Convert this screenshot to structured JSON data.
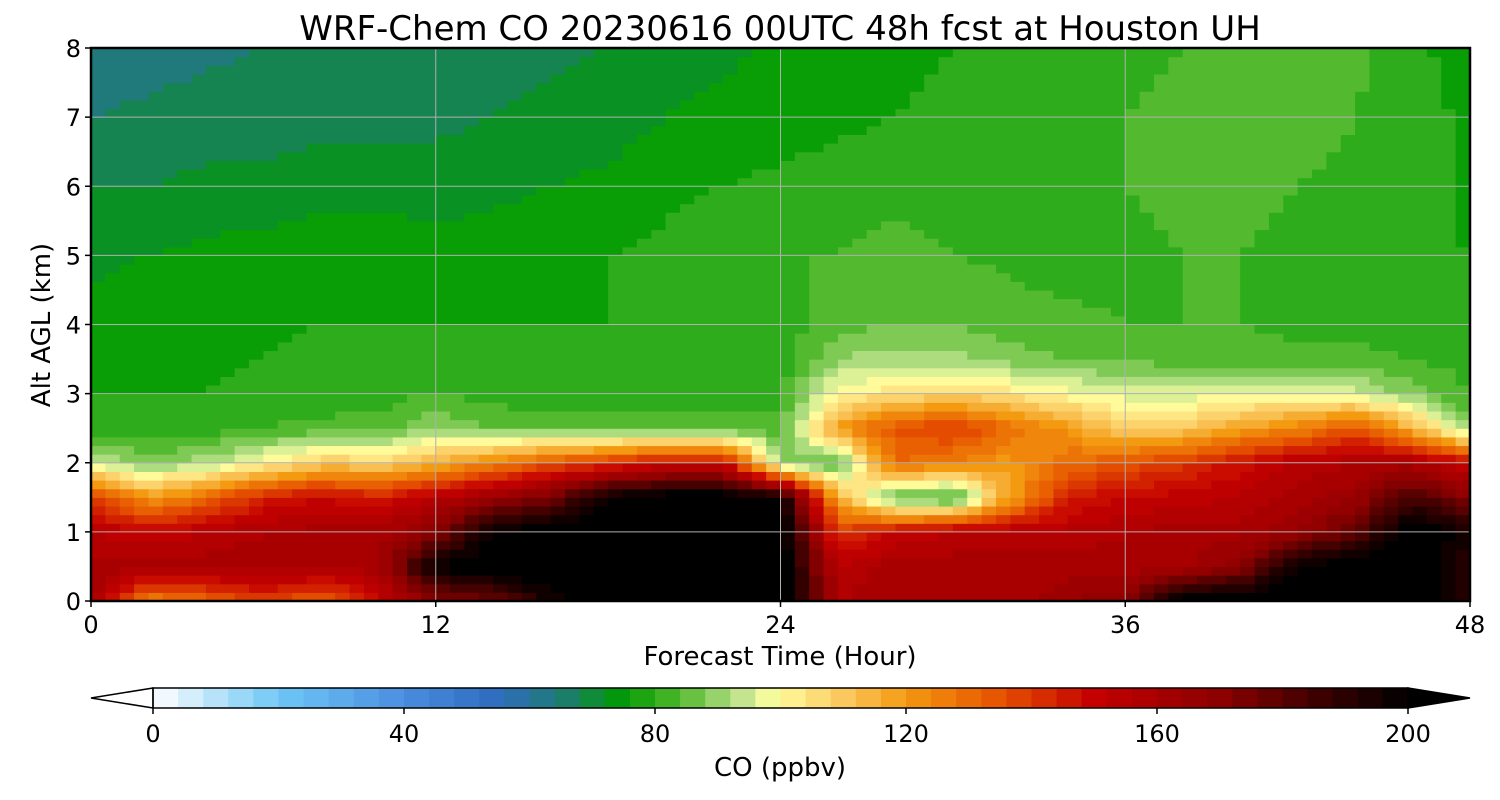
{
  "chart_data": {
    "type": "heatmap",
    "title": "WRF-Chem CO  20230616 00UTC 48h fcst at Houston UH",
    "xlabel": "Forecast Time (Hour)",
    "ylabel": "Alt AGL (km)",
    "xlim": [
      0,
      48
    ],
    "ylim": [
      0,
      8
    ],
    "x_ticks": [
      0,
      12,
      24,
      36,
      48
    ],
    "y_ticks": [
      0,
      1,
      2,
      3,
      4,
      5,
      6,
      7,
      8
    ],
    "grid": true,
    "colorbar": {
      "label": "CO  (ppbv)",
      "vmin": 0,
      "vmax": 200,
      "ticks": [
        0,
        40,
        80,
        120,
        160,
        200
      ],
      "extend": "both",
      "colors": [
        {
          "v": 0,
          "c": "#ffffff"
        },
        {
          "v": 20,
          "c": "#6ec7f5"
        },
        {
          "v": 40,
          "c": "#4a8ee0"
        },
        {
          "v": 55,
          "c": "#2e6cbe"
        },
        {
          "v": 65,
          "c": "#1e7b74"
        },
        {
          "v": 75,
          "c": "#009a00"
        },
        {
          "v": 85,
          "c": "#5cbd35"
        },
        {
          "v": 93,
          "c": "#b8e08a"
        },
        {
          "v": 99,
          "c": "#ffffa0"
        },
        {
          "v": 110,
          "c": "#fbc860"
        },
        {
          "v": 120,
          "c": "#f39a10"
        },
        {
          "v": 135,
          "c": "#e65200"
        },
        {
          "v": 150,
          "c": "#c40000"
        },
        {
          "v": 170,
          "c": "#8c0000"
        },
        {
          "v": 185,
          "c": "#400000"
        },
        {
          "v": 200,
          "c": "#000000"
        }
      ]
    },
    "hours": [
      0,
      2,
      4,
      6,
      8,
      10,
      12,
      14,
      16,
      18,
      20,
      22,
      24,
      26,
      28,
      30,
      32,
      34,
      36,
      38,
      40,
      42,
      44,
      46,
      48
    ],
    "altitudes_km": [
      0,
      0.5,
      1,
      1.5,
      2,
      2.5,
      3,
      3.5,
      4,
      5,
      6,
      7,
      8
    ],
    "co_ppbv": [
      [
        162,
        125,
        130,
        140,
        130,
        150,
        170,
        175,
        195,
        205,
        205,
        205,
        205,
        158,
        160,
        160,
        160,
        165,
        170,
        205,
        205,
        205,
        205,
        205,
        190
      ],
      [
        160,
        160,
        160,
        160,
        160,
        160,
        200,
        205,
        205,
        205,
        205,
        205,
        205,
        155,
        160,
        160,
        160,
        160,
        160,
        160,
        170,
        200,
        205,
        205,
        190
      ],
      [
        155,
        150,
        155,
        158,
        160,
        160,
        170,
        200,
        205,
        205,
        205,
        205,
        205,
        140,
        150,
        155,
        155,
        155,
        158,
        160,
        160,
        165,
        180,
        205,
        195
      ],
      [
        140,
        120,
        130,
        145,
        150,
        145,
        155,
        165,
        175,
        200,
        205,
        205,
        200,
        115,
        84,
        80,
        118,
        145,
        150,
        152,
        155,
        160,
        165,
        185,
        170
      ],
      [
        95,
        88,
        92,
        100,
        110,
        108,
        115,
        125,
        135,
        140,
        150,
        150,
        90,
        84,
        130,
        125,
        120,
        130,
        135,
        140,
        148,
        155,
        158,
        160,
        150
      ],
      [
        80,
        80,
        80,
        82,
        83,
        84,
        90,
        86,
        84,
        84,
        84,
        84,
        84,
        120,
        135,
        140,
        130,
        120,
        108,
        110,
        118,
        125,
        135,
        115,
        88
      ],
      [
        78,
        78,
        78,
        79,
        80,
        80,
        82,
        80,
        80,
        80,
        80,
        80,
        80,
        100,
        105,
        108,
        104,
        100,
        96,
        96,
        97,
        98,
        96,
        88,
        82
      ],
      [
        76,
        77,
        77,
        78,
        79,
        80,
        80,
        79,
        79,
        79,
        80,
        80,
        80,
        90,
        92,
        92,
        88,
        86,
        85,
        84,
        84,
        83,
        83,
        82,
        80
      ],
      [
        75,
        76,
        77,
        77,
        78,
        78,
        78,
        78,
        78,
        78,
        79,
        80,
        80,
        84,
        86,
        86,
        84,
        83,
        82,
        82,
        82,
        81,
        81,
        80,
        79
      ],
      [
        73,
        74,
        75,
        76,
        77,
        77,
        76,
        76,
        77,
        78,
        79,
        80,
        82,
        82,
        83,
        82,
        81,
        80,
        81,
        82,
        82,
        81,
        80,
        79,
        78
      ],
      [
        70,
        70,
        71,
        71,
        72,
        72,
        72,
        73,
        74,
        75,
        77,
        78,
        79,
        80,
        81,
        80,
        80,
        80,
        82,
        83,
        83,
        82,
        81,
        80,
        77
      ],
      [
        66,
        67,
        68,
        68,
        69,
        69,
        69,
        70,
        71,
        72,
        74,
        75,
        76,
        77,
        78,
        79,
        79,
        80,
        82,
        83,
        83,
        84,
        82,
        80,
        77
      ],
      [
        64,
        64,
        65,
        66,
        67,
        67,
        67,
        68,
        69,
        70,
        72,
        73,
        75,
        76,
        77,
        78,
        79,
        80,
        81,
        82,
        82,
        84,
        83,
        79,
        76
      ]
    ]
  }
}
